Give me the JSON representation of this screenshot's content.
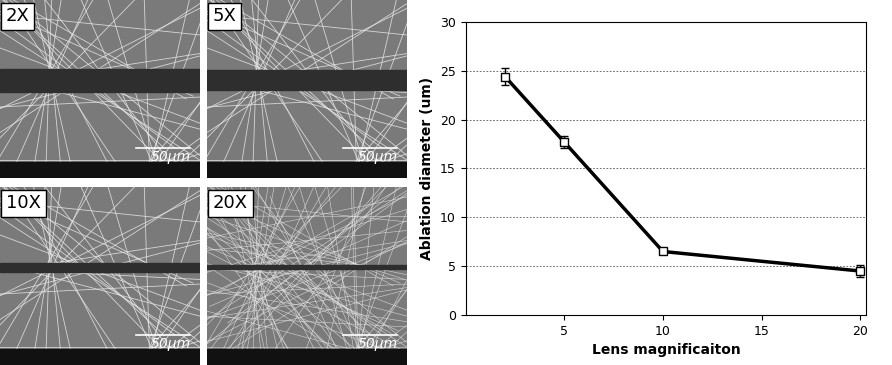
{
  "images": {
    "panels": [
      {
        "label": "2X",
        "scale_bar": "50μm"
      },
      {
        "label": "5X",
        "scale_bar": "50μm"
      },
      {
        "label": "10X",
        "scale_bar": "50μm"
      },
      {
        "label": "20X",
        "scale_bar": "50μm"
      }
    ]
  },
  "chart_data": {
    "type": "line",
    "x": [
      2,
      5,
      10,
      20
    ],
    "values": [
      24.4,
      17.7,
      6.5,
      4.5
    ],
    "errors": [
      0.9,
      0.6,
      0.2,
      0.6
    ],
    "color": "#000000",
    "marker": "s",
    "line_style": "solid",
    "xlabel": "Lens magnificaiton",
    "ylabel": "Ablation diameter (um)",
    "xlim": [
      0,
      20.3
    ],
    "xticks": [
      5,
      10,
      15,
      20
    ],
    "ylim": [
      0,
      30
    ],
    "yticks": [
      0,
      5,
      10,
      15,
      20,
      25,
      30
    ],
    "grid": true
  }
}
